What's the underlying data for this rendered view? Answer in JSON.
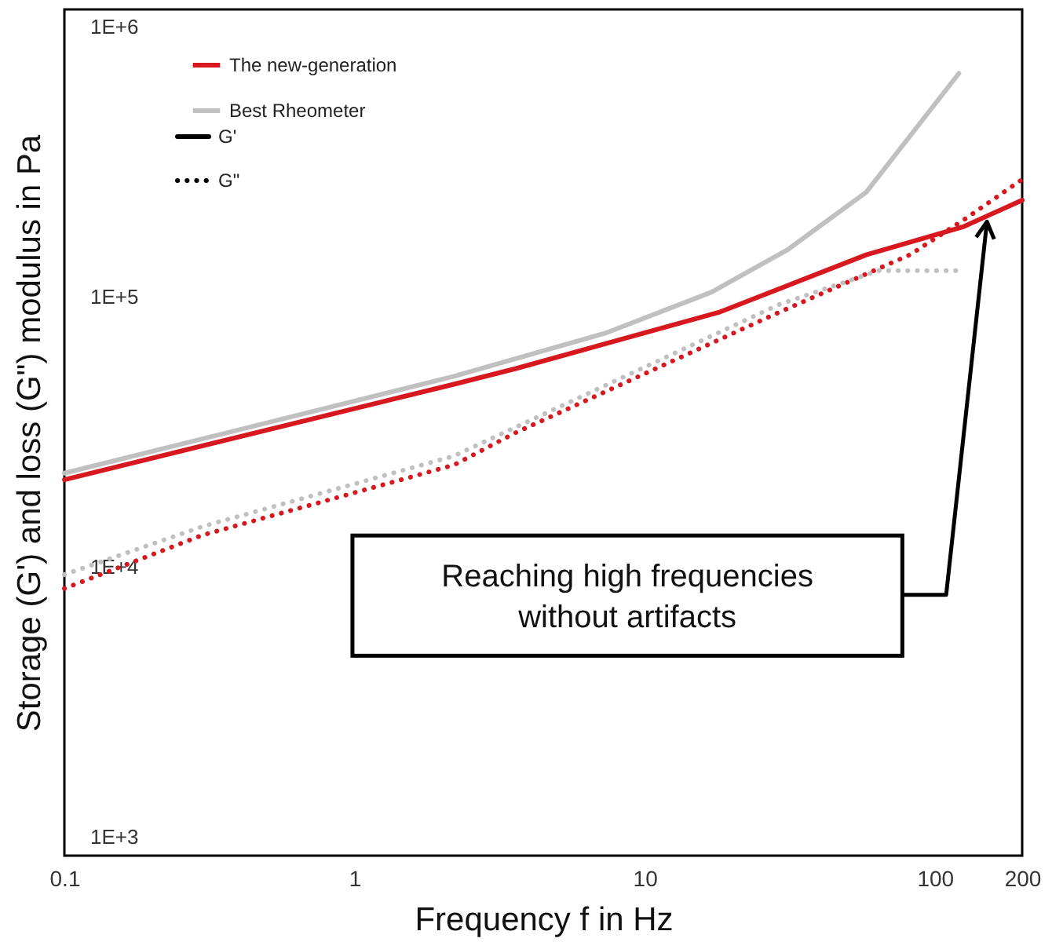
{
  "chart_data": {
    "type": "line",
    "xlabel": "Frequency f in Hz",
    "ylabel": "Storage (G') and loss (G\") modulus in Pa",
    "log": "xy",
    "xlim": [
      0.1,
      200
    ],
    "xticks": [
      0.1,
      1,
      10,
      100,
      200
    ],
    "ylim": [
      850,
      1160000
    ],
    "yticks": [
      {
        "value": 1000,
        "label": "1E+3"
      },
      {
        "value": 10000,
        "label": "1E+4"
      },
      {
        "value": 100000,
        "label": "1E+5"
      },
      {
        "value": 1000000,
        "label": "1E+6"
      }
    ],
    "grid": false,
    "legend": "top left",
    "series": [
      {
        "name": "The new-generation",
        "color": "#d7191f",
        "line_style": "solid",
        "x": [
          0.1,
          2.2,
          3.6,
          18,
          58,
          126,
          200
        ],
        "values": [
          21000,
          47400,
          54200,
          87500,
          143000,
          182000,
          228000
        ]
      },
      {
        "name": "Best Rheometer",
        "color": "#c0c0c0",
        "line_style": "solid",
        "x": [
          0.1,
          2.2,
          7.4,
          17,
          31,
          58,
          121
        ],
        "values": [
          22200,
          50700,
          73600,
          104000,
          149000,
          244000,
          672000
        ]
      },
      {
        "color": "#d7191f",
        "line_style": "dotted",
        "x": [
          0.1,
          0.3,
          2.2,
          3.6,
          29,
          82,
          127,
          200
        ],
        "values": [
          8300,
          13100,
          23800,
          31400,
          87500,
          143000,
          194000,
          272000
        ]
      },
      {
        "color": "#c0c0c0",
        "line_style": "dotted",
        "x": [
          0.1,
          0.3,
          2.2,
          29,
          64,
          121
        ],
        "values": [
          9350,
          14100,
          25700,
          93500,
          125000,
          125000
        ]
      }
    ],
    "annotations": [
      "G'",
      "G\"",
      "Reaching high frequencies\nwithout artifacts"
    ]
  }
}
